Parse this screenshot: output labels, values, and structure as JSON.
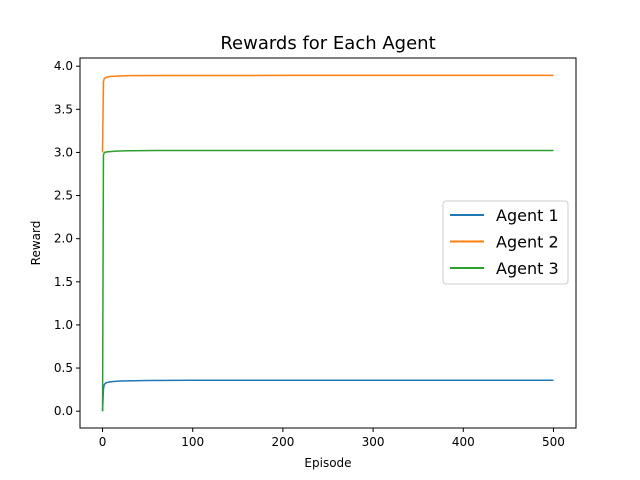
{
  "chart_data": {
    "type": "line",
    "title": "Rewards for Each Agent",
    "xlabel": "Episode",
    "ylabel": "Reward",
    "xlim": [
      -25,
      525
    ],
    "ylim": [
      -0.195,
      4.095
    ],
    "xticks": [
      0,
      100,
      200,
      300,
      400,
      500
    ],
    "yticks": [
      0.0,
      0.5,
      1.0,
      1.5,
      2.0,
      2.5,
      3.0,
      3.5,
      4.0
    ],
    "grid": false,
    "legend_position": "center-right",
    "series": [
      {
        "name": "Agent 1",
        "color": "#1f77b4",
        "points": [
          [
            0,
            0.0
          ],
          [
            1,
            0.26
          ],
          [
            2,
            0.31
          ],
          [
            4,
            0.33
          ],
          [
            8,
            0.34
          ],
          [
            14,
            0.345
          ],
          [
            20,
            0.35
          ],
          [
            50,
            0.355
          ],
          [
            100,
            0.358
          ],
          [
            200,
            0.358
          ],
          [
            300,
            0.358
          ],
          [
            400,
            0.358
          ],
          [
            500,
            0.358
          ]
        ]
      },
      {
        "name": "Agent 2",
        "color": "#ff7f0e",
        "points": [
          [
            0,
            3.0
          ],
          [
            1,
            3.82
          ],
          [
            2,
            3.86
          ],
          [
            4,
            3.87
          ],
          [
            8,
            3.88
          ],
          [
            15,
            3.885
          ],
          [
            30,
            3.89
          ],
          [
            60,
            3.892
          ],
          [
            100,
            3.892
          ],
          [
            200,
            3.893
          ],
          [
            300,
            3.893
          ],
          [
            400,
            3.893
          ],
          [
            500,
            3.893
          ]
        ]
      },
      {
        "name": "Agent 3",
        "color": "#2ca02c",
        "points": [
          [
            0,
            0.0
          ],
          [
            1,
            2.97
          ],
          [
            2,
            3.0
          ],
          [
            4,
            3.005
          ],
          [
            8,
            3.01
          ],
          [
            15,
            3.015
          ],
          [
            30,
            3.02
          ],
          [
            60,
            3.022
          ],
          [
            100,
            3.022
          ],
          [
            200,
            3.022
          ],
          [
            300,
            3.022
          ],
          [
            400,
            3.022
          ],
          [
            500,
            3.022
          ]
        ]
      }
    ]
  }
}
